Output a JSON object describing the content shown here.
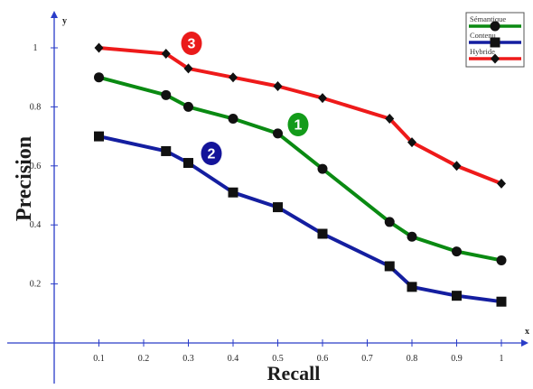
{
  "chart_data": {
    "type": "line",
    "x_axis_label": "x",
    "y_axis_label": "y",
    "xlabel": "Recall",
    "ylabel": "Precision",
    "xlim": [
      0,
      1.03
    ],
    "ylim": [
      0,
      1.1
    ],
    "x_ticks": [
      0.1,
      0.2,
      0.3,
      0.4,
      0.5,
      0.6,
      0.7,
      0.8,
      0.9,
      1
    ],
    "x_tick_labels": [
      "0.1",
      "0.2",
      "0.3",
      "0.4",
      "0.5",
      "0.6",
      "0.7",
      "0.8",
      "0.9",
      "1"
    ],
    "y_ticks": [
      0.2,
      0.4,
      0.6,
      0.8,
      1
    ],
    "y_tick_labels": [
      "0.2",
      "0.4",
      "0.6",
      "0.8",
      "1"
    ],
    "legend": "top-right",
    "grid": false,
    "series": [
      {
        "name": "Sémantique",
        "color": "#0a8a12",
        "marker": "circle",
        "badge": "1",
        "badge_color": "#139b1a",
        "x": [
          0.1,
          0.25,
          0.3,
          0.4,
          0.5,
          0.6,
          0.75,
          0.8,
          0.9,
          1
        ],
        "y": [
          0.9,
          0.84,
          0.8,
          0.76,
          0.71,
          0.59,
          0.41,
          0.36,
          0.31,
          0.28
        ]
      },
      {
        "name": "Contenu",
        "color": "#141ea0",
        "marker": "square",
        "badge": "2",
        "badge_color": "#14149a",
        "x": [
          0.1,
          0.25,
          0.3,
          0.4,
          0.5,
          0.6,
          0.75,
          0.8,
          0.9,
          1
        ],
        "y": [
          0.7,
          0.65,
          0.61,
          0.51,
          0.46,
          0.37,
          0.26,
          0.19,
          0.16,
          0.14
        ]
      },
      {
        "name": "Hybride",
        "color": "#ee1a1a",
        "marker": "diamond",
        "badge": "3",
        "badge_color": "#ea1a1a",
        "x": [
          0.1,
          0.25,
          0.3,
          0.4,
          0.5,
          0.6,
          0.75,
          0.8,
          0.9,
          1
        ],
        "y": [
          1.0,
          0.98,
          0.93,
          0.9,
          0.87,
          0.83,
          0.76,
          0.68,
          0.6,
          0.54
        ]
      }
    ]
  }
}
